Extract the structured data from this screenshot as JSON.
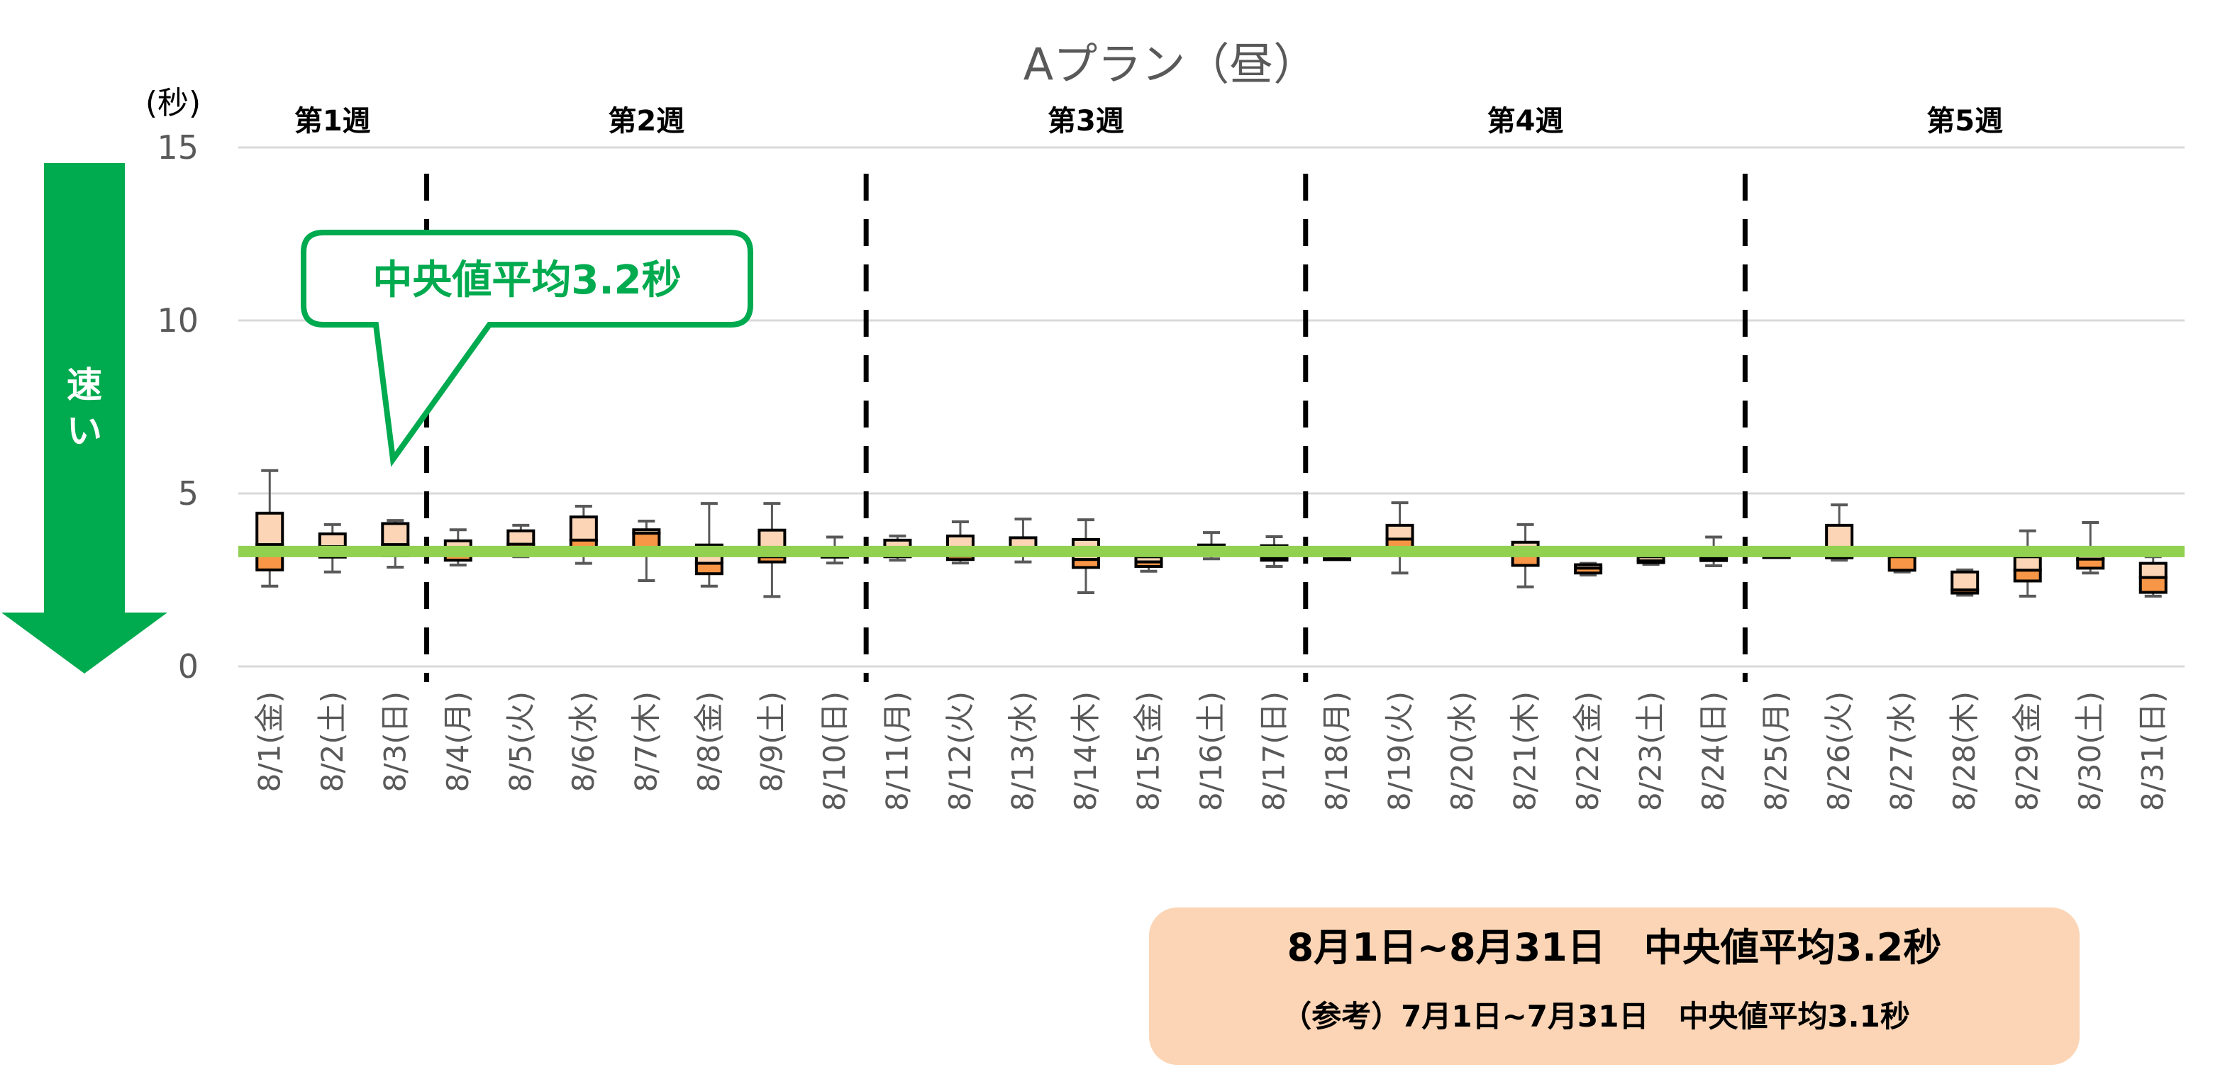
{
  "chart_data": {
    "type": "boxplot",
    "title": "Aプラン（昼）",
    "ylabel": "(秒)",
    "ylim": [
      0,
      15
    ],
    "yticks": [
      0,
      5,
      10,
      15
    ],
    "grid": true,
    "categories": [
      "8/1(金)",
      "8/2(土)",
      "8/3(日)",
      "8/4(月)",
      "8/5(火)",
      "8/6(水)",
      "8/7(木)",
      "8/8(金)",
      "8/9(土)",
      "8/10(日)",
      "8/11(月)",
      "8/12(火)",
      "8/13(水)",
      "8/14(木)",
      "8/15(金)",
      "8/16(土)",
      "8/17(日)",
      "8/18(月)",
      "8/19(火)",
      "8/20(水)",
      "8/21(木)",
      "8/22(金)",
      "8/23(土)",
      "8/24(日)",
      "8/25(月)",
      "8/26(火)",
      "8/27(水)",
      "8/28(木)",
      "8/29(金)",
      "8/30(土)",
      "8/31(日)"
    ],
    "boxes": [
      {
        "min": 2.32,
        "q1": 2.79,
        "median": 3.52,
        "q3": 4.43,
        "max": 5.66
      },
      {
        "min": 2.73,
        "q1": 3.16,
        "median": 3.46,
        "q3": 3.83,
        "max": 4.1
      },
      {
        "min": 2.87,
        "q1": 3.2,
        "median": 3.52,
        "q3": 4.13,
        "max": 4.22
      },
      {
        "min": 2.93,
        "q1": 3.07,
        "median": 3.3,
        "q3": 3.63,
        "max": 3.95
      },
      {
        "min": 3.17,
        "q1": 3.42,
        "median": 3.53,
        "q3": 3.92,
        "max": 4.08
      },
      {
        "min": 2.98,
        "q1": 3.44,
        "median": 3.65,
        "q3": 4.32,
        "max": 4.63
      },
      {
        "min": 2.48,
        "q1": 3.3,
        "median": 3.85,
        "q3": 3.95,
        "max": 4.2
      },
      {
        "min": 2.32,
        "q1": 2.68,
        "median": 2.98,
        "q3": 3.51,
        "max": 4.71
      },
      {
        "min": 2.02,
        "q1": 3.02,
        "median": 3.17,
        "q3": 3.94,
        "max": 4.71
      },
      {
        "min": 2.99,
        "q1": 3.16,
        "median": 3.24,
        "q3": 3.39,
        "max": 3.74
      },
      {
        "min": 3.07,
        "q1": 3.17,
        "median": 3.27,
        "q3": 3.65,
        "max": 3.77
      },
      {
        "min": 2.99,
        "q1": 3.09,
        "median": 3.19,
        "q3": 3.77,
        "max": 4.18
      },
      {
        "min": 3.02,
        "q1": 3.24,
        "median": 3.3,
        "q3": 3.72,
        "max": 4.26
      },
      {
        "min": 2.13,
        "q1": 2.86,
        "median": 3.09,
        "q3": 3.67,
        "max": 4.24
      },
      {
        "min": 2.75,
        "q1": 2.89,
        "median": 3.02,
        "q3": 3.17,
        "max": 3.2
      },
      {
        "min": 3.11,
        "q1": 3.24,
        "median": 3.3,
        "q3": 3.51,
        "max": 3.87
      },
      {
        "min": 2.89,
        "q1": 3.07,
        "median": 3.12,
        "q3": 3.49,
        "max": 3.75
      },
      {
        "min": 3.11,
        "q1": 3.11,
        "median": 3.11,
        "q3": 3.11,
        "max": 3.11
      },
      {
        "min": 2.7,
        "q1": 3.37,
        "median": 3.68,
        "q3": 4.08,
        "max": 4.73
      },
      null,
      {
        "min": 2.3,
        "q1": 2.92,
        "median": 3.41,
        "q3": 3.59,
        "max": 4.1
      },
      {
        "min": 2.64,
        "q1": 2.7,
        "median": 2.84,
        "q3": 2.94,
        "max": 2.98
      },
      {
        "min": 2.95,
        "q1": 3.0,
        "median": 3.05,
        "q3": 3.17,
        "max": 3.17
      },
      {
        "min": 2.91,
        "q1": 3.06,
        "median": 3.12,
        "q3": 3.44,
        "max": 3.74
      },
      {
        "min": 3.17,
        "q1": 3.17,
        "median": 3.17,
        "q3": 3.17,
        "max": 3.17
      },
      {
        "min": 3.07,
        "q1": 3.14,
        "median": 3.17,
        "q3": 4.08,
        "max": 4.67
      },
      {
        "min": 2.73,
        "q1": 2.78,
        "median": 3.17,
        "q3": 3.17,
        "max": 3.17
      },
      {
        "min": 2.06,
        "q1": 2.12,
        "median": 2.21,
        "q3": 2.73,
        "max": 2.79
      },
      {
        "min": 2.03,
        "q1": 2.47,
        "median": 2.78,
        "q3": 3.17,
        "max": 3.92
      },
      {
        "min": 2.7,
        "q1": 2.84,
        "median": 3.1,
        "q3": 3.39,
        "max": 4.16
      },
      {
        "min": 2.03,
        "q1": 2.14,
        "median": 2.57,
        "q3": 2.98,
        "max": 3.17
      }
    ],
    "reference_line": {
      "value": 3.2,
      "color": "#92D050"
    },
    "weeks": [
      {
        "label": "第1週",
        "from": 0,
        "to": 2
      },
      {
        "label": "第2週",
        "from": 3,
        "to": 9
      },
      {
        "label": "第3週",
        "from": 10,
        "to": 16
      },
      {
        "label": "第4週",
        "from": 17,
        "to": 23
      },
      {
        "label": "第5週",
        "from": 24,
        "to": 30
      }
    ],
    "week_separators_after": [
      2,
      9,
      16,
      23
    ],
    "colors": {
      "box_upper": "#FBD5B5",
      "box_lower": "#F79646",
      "whisker": "#595959",
      "grid": "#D9D9D9",
      "text": "#595959"
    }
  },
  "arrow": {
    "label": "速い",
    "color": "#00AA4F"
  },
  "callout": {
    "text": "中央値平均3.2秒",
    "color": "#00AA4F"
  },
  "summary": {
    "line1": "8月1日~8月31日　中央値平均3.2秒",
    "line2": "（参考）7月1日~7月31日　中央値平均3.1秒",
    "bg": "#FBD5B5"
  }
}
